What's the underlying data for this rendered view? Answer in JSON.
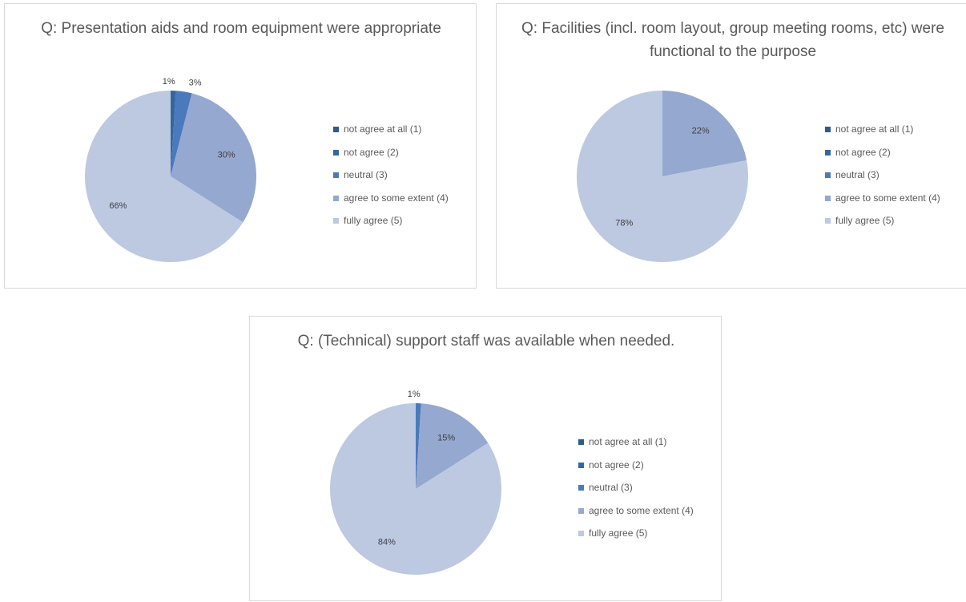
{
  "categories": [
    "not agree at all (1)",
    "not agree (2)",
    "neutral (3)",
    "agree to some extent (4)",
    "fully agree (5)"
  ],
  "colors": [
    "#2E5B8C",
    "#3566A4",
    "#4A7ABC",
    "#94A8D0",
    "#BCC9E1"
  ],
  "chart_data": [
    {
      "type": "pie",
      "title": "Q:  Presentation aids and room equipment were appropriate",
      "categories": [
        "not agree at all (1)",
        "not agree (2)",
        "neutral (3)",
        "agree to some extent (4)",
        "fully agree (5)"
      ],
      "values": [
        0,
        1,
        3,
        30,
        66
      ],
      "labels": [
        "",
        "1%",
        "3%",
        "30%",
        "66%"
      ]
    },
    {
      "type": "pie",
      "title": "Q:  Facilities (incl. room layout, group meeting rooms, etc) were functional to the purpose",
      "categories": [
        "not agree at all (1)",
        "not agree (2)",
        "neutral (3)",
        "agree to some extent (4)",
        "fully agree (5)"
      ],
      "values": [
        0,
        0,
        0,
        22,
        78
      ],
      "labels": [
        "",
        "",
        "",
        "22%",
        "78%"
      ]
    },
    {
      "type": "pie",
      "title": "Q:  (Technical) support staff was available when needed.",
      "categories": [
        "not agree at all (1)",
        "not agree (2)",
        "neutral (3)",
        "agree to some extent (4)",
        "fully agree (5)"
      ],
      "values": [
        0,
        0,
        1,
        15,
        84
      ],
      "labels": [
        "",
        "",
        "1%",
        "15%",
        "84%"
      ]
    }
  ]
}
